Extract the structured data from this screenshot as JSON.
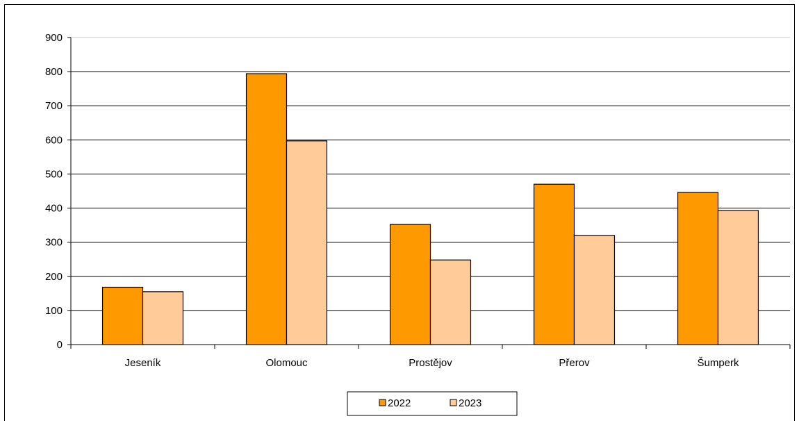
{
  "chart_data": {
    "type": "bar",
    "categories": [
      "Jeseník",
      "Olomouc",
      "Prostějov",
      "Přerov",
      "Šumperk"
    ],
    "series": [
      {
        "name": "2022",
        "values": [
          168,
          794,
          352,
          470,
          446
        ],
        "color": "#FF9900"
      },
      {
        "name": "2023",
        "values": [
          155,
          597,
          248,
          320,
          393
        ],
        "color": "#FFCC99"
      }
    ],
    "ylim": [
      0,
      900
    ],
    "yticks": [
      0,
      100,
      200,
      300,
      400,
      500,
      600,
      700,
      800,
      900
    ],
    "grid": true,
    "legend_position": "bottom"
  }
}
